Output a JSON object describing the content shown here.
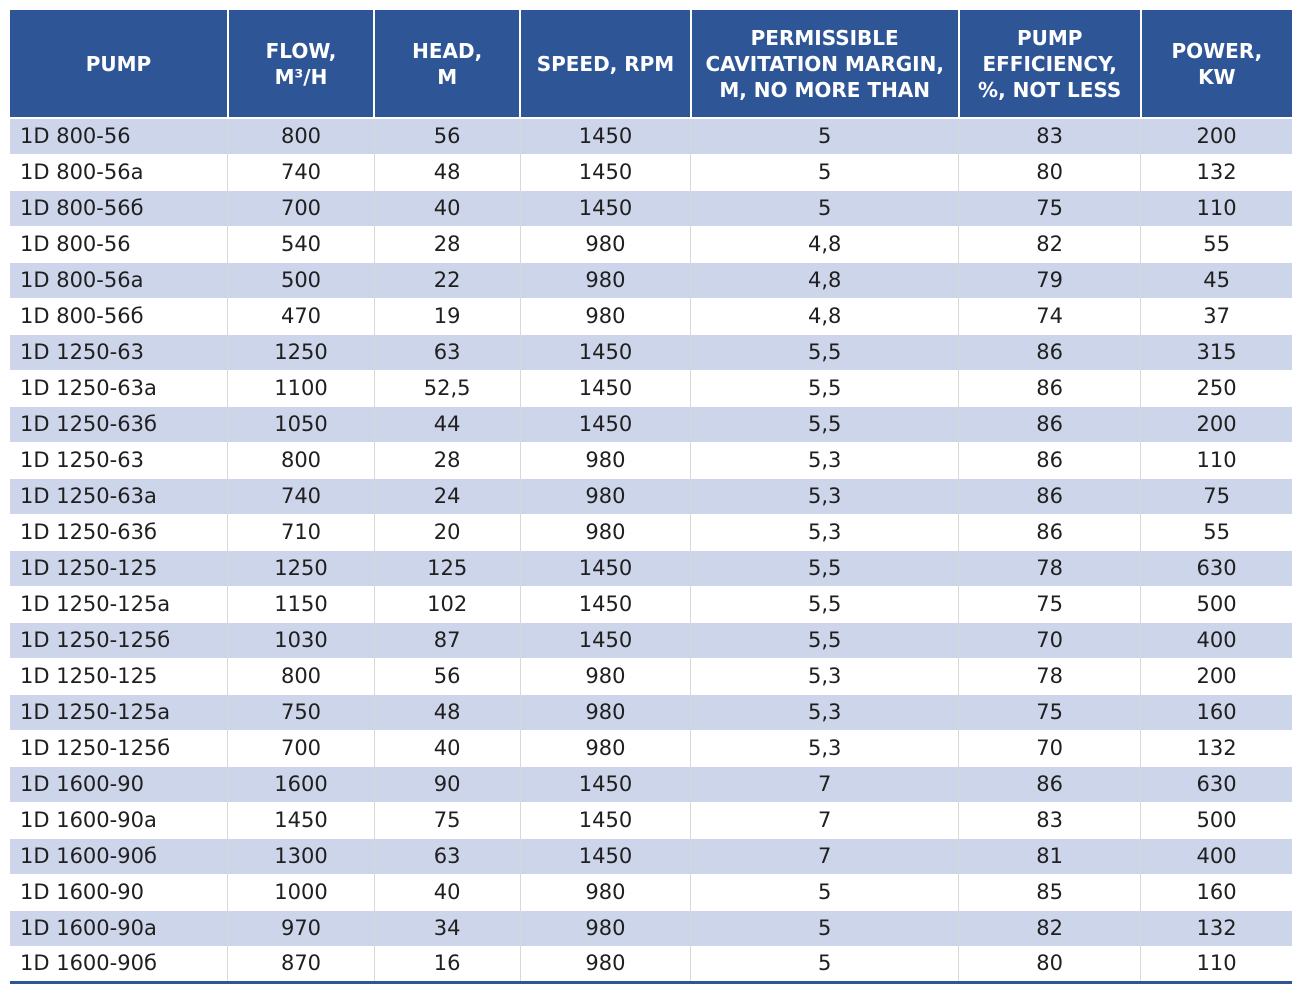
{
  "table": {
    "columns": [
      "PUMP",
      "FLOW,\nM³/H",
      "HEAD,\nM",
      "SPEED, RPM",
      "PERMISSIBLE\nCAVITATION MARGIN,\nM, NO MORE THAN",
      "PUMP\nEFFICIENCY,\n%, NOT LESS",
      "POWER,\nKW"
    ],
    "rows": [
      [
        "1D 800-56",
        "800",
        "56",
        "1450",
        "5",
        "83",
        "200"
      ],
      [
        "1D 800-56a",
        "740",
        "48",
        "1450",
        "5",
        "80",
        "132"
      ],
      [
        "1D 800-56б",
        "700",
        "40",
        "1450",
        "5",
        "75",
        "110"
      ],
      [
        "1D 800-56",
        "540",
        "28",
        "980",
        "4,8",
        "82",
        "55"
      ],
      [
        "1D 800-56a",
        "500",
        "22",
        "980",
        "4,8",
        "79",
        "45"
      ],
      [
        "1D 800-56б",
        "470",
        "19",
        "980",
        "4,8",
        "74",
        "37"
      ],
      [
        "1D 1250-63",
        "1250",
        "63",
        "1450",
        "5,5",
        "86",
        "315"
      ],
      [
        "1D 1250-63a",
        "1100",
        "52,5",
        "1450",
        "5,5",
        "86",
        "250"
      ],
      [
        "1D 1250-63б",
        "1050",
        "44",
        "1450",
        "5,5",
        "86",
        "200"
      ],
      [
        "1D 1250-63",
        "800",
        "28",
        "980",
        "5,3",
        "86",
        "110"
      ],
      [
        "1D 1250-63a",
        "740",
        "24",
        "980",
        "5,3",
        "86",
        "75"
      ],
      [
        "1D 1250-63б",
        "710",
        "20",
        "980",
        "5,3",
        "86",
        "55"
      ],
      [
        "1D 1250-125",
        "1250",
        "125",
        "1450",
        "5,5",
        "78",
        "630"
      ],
      [
        "1D 1250-125a",
        "1150",
        "102",
        "1450",
        "5,5",
        "75",
        "500"
      ],
      [
        "1D 1250-125б",
        "1030",
        "87",
        "1450",
        "5,5",
        "70",
        "400"
      ],
      [
        "1D 1250-125",
        "800",
        "56",
        "980",
        "5,3",
        "78",
        "200"
      ],
      [
        "1D 1250-125a",
        "750",
        "48",
        "980",
        "5,3",
        "75",
        "160"
      ],
      [
        "1D 1250-125б",
        "700",
        "40",
        "980",
        "5,3",
        "70",
        "132"
      ],
      [
        "1D 1600-90",
        "1600",
        "90",
        "1450",
        "7",
        "86",
        "630"
      ],
      [
        "1D 1600-90a",
        "1450",
        "75",
        "1450",
        "7",
        "83",
        "500"
      ],
      [
        "1D 1600-90б",
        "1300",
        "63",
        "1450",
        "7",
        "81",
        "400"
      ],
      [
        "1D 1600-90",
        "1000",
        "40",
        "980",
        "5",
        "85",
        "160"
      ],
      [
        "1D 1600-90a",
        "970",
        "34",
        "980",
        "5",
        "82",
        "132"
      ],
      [
        "1D 1600-90б",
        "870",
        "16",
        "980",
        "5",
        "80",
        "110"
      ]
    ]
  },
  "colors": {
    "header_bg": "#2E5697",
    "header_text": "#FFFFFF",
    "row_alt_bg": "#CDD5EA",
    "row_bg": "#FFFFFF",
    "body_text": "#1F1F1F",
    "bottom_border": "#2E5697"
  }
}
